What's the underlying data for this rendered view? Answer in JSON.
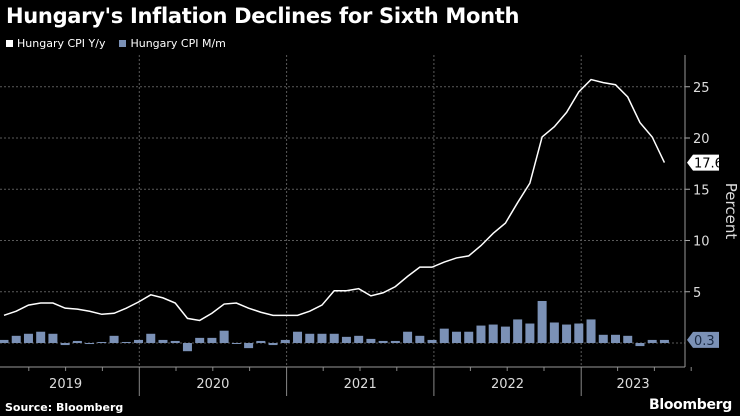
{
  "chart_data": {
    "type": "line+bar",
    "title": "Hungary's Inflation Declines for Sixth Month",
    "ylabel": "Percent",
    "ylim": [
      -2.3,
      28
    ],
    "yticks": [
      5,
      10,
      15,
      20,
      25
    ],
    "xtick_labels": [
      "2019",
      "2020",
      "2021",
      "2022",
      "2023"
    ],
    "grid": true,
    "legend_placement": "top-left",
    "start": "2019-01",
    "end": "2023-07",
    "series": [
      {
        "name": "Hungary CPI Y/y",
        "type": "line",
        "color": "#ffffff",
        "last_value_label": "17.6",
        "values": [
          2.7,
          3.1,
          3.7,
          3.9,
          3.9,
          3.4,
          3.3,
          3.1,
          2.8,
          2.9,
          3.4,
          4.0,
          4.7,
          4.4,
          3.9,
          2.4,
          2.2,
          2.9,
          3.8,
          3.9,
          3.4,
          3.0,
          2.7,
          2.7,
          2.7,
          3.1,
          3.7,
          5.1,
          5.1,
          5.3,
          4.6,
          4.9,
          5.5,
          6.5,
          7.4,
          7.4,
          7.9,
          8.3,
          8.5,
          9.5,
          10.7,
          11.7,
          13.7,
          15.6,
          20.1,
          21.1,
          22.5,
          24.5,
          25.7,
          25.4,
          25.2,
          24.0,
          21.5,
          20.1,
          17.6
        ]
      },
      {
        "name": "Hungary CPI M/m",
        "type": "bar",
        "color": "#7b91b6",
        "last_value_label": "0.3",
        "values": [
          0.3,
          0.7,
          0.9,
          1.1,
          0.9,
          -0.2,
          0.2,
          -0.1,
          0.1,
          0.7,
          0.1,
          0.3,
          0.9,
          0.3,
          0.2,
          -0.8,
          0.5,
          0.5,
          1.2,
          0.0,
          -0.5,
          0.2,
          -0.2,
          0.3,
          1.1,
          0.9,
          0.9,
          0.9,
          0.6,
          0.7,
          0.4,
          0.2,
          0.2,
          1.1,
          0.7,
          0.3,
          1.4,
          1.1,
          1.1,
          1.7,
          1.8,
          1.6,
          2.3,
          1.9,
          4.1,
          2.0,
          1.8,
          1.9,
          2.3,
          0.8,
          0.8,
          0.7,
          -0.3,
          0.3,
          0.3
        ]
      }
    ]
  },
  "source": "Source: Bloomberg",
  "logo": "Bloomberg"
}
